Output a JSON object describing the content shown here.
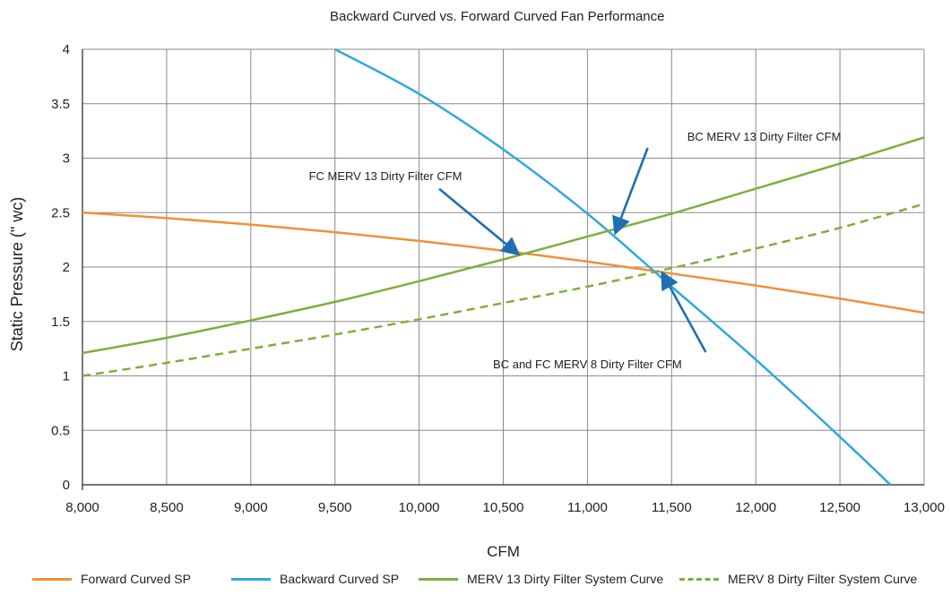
{
  "chart_data": {
    "type": "line",
    "title": "Backward Curved vs. Forward Curved Fan Performance",
    "xlabel": "CFM",
    "ylabel": "Static Pressure (\" wc)",
    "xlim": [
      8000,
      13000
    ],
    "ylim": [
      0,
      4
    ],
    "xticks": [
      8000,
      8500,
      9000,
      9500,
      10000,
      10500,
      11000,
      11500,
      12000,
      12500,
      13000
    ],
    "xtick_labels": [
      "8,000",
      "8,500",
      "9,000",
      "9,500",
      "10,000",
      "10,500",
      "11,000",
      "11,500",
      "12,000",
      "12,500",
      "13,000"
    ],
    "yticks": [
      0,
      0.5,
      1,
      1.5,
      2,
      2.5,
      3,
      3.5,
      4
    ],
    "ytick_labels": [
      "0",
      "0.5",
      "1",
      "1.5",
      "2",
      "2.5",
      "3",
      "3.5",
      "4"
    ],
    "grid": true,
    "legend_position": "bottom",
    "series": [
      {
        "name": "Forward Curved SP",
        "color": "#f0913a",
        "style": "solid",
        "x": [
          8000,
          8500,
          9000,
          9500,
          10000,
          10500,
          11000,
          11500,
          12000,
          12500,
          13000
        ],
        "y": [
          2.5,
          2.45,
          2.39,
          2.32,
          2.24,
          2.15,
          2.05,
          1.94,
          1.83,
          1.71,
          1.58
        ]
      },
      {
        "name": "Backward Curved SP",
        "color": "#2fa8dc",
        "style": "solid",
        "x": [
          9500,
          10000,
          10500,
          11000,
          11500,
          12000,
          12500,
          12800
        ],
        "y": [
          4.0,
          3.59,
          3.08,
          2.49,
          1.82,
          1.15,
          0.44,
          0.0
        ]
      },
      {
        "name": "MERV 13 Dirty Filter System Curve",
        "color": "#7fae3e",
        "style": "solid",
        "x": [
          8000,
          8500,
          9000,
          9500,
          10000,
          10500,
          11000,
          11500,
          12000,
          12500,
          13000
        ],
        "y": [
          1.21,
          1.35,
          1.51,
          1.68,
          1.87,
          2.07,
          2.28,
          2.49,
          2.72,
          2.95,
          3.19
        ]
      },
      {
        "name": "MERV 8 Dirty Filter System Curve",
        "color": "#7fae3e",
        "style": "dashed",
        "x": [
          8000,
          8500,
          9000,
          9500,
          10000,
          10500,
          11000,
          11500,
          12000,
          12500,
          13000
        ],
        "y": [
          1.0,
          1.12,
          1.25,
          1.38,
          1.52,
          1.67,
          1.82,
          1.99,
          2.17,
          2.36,
          2.58
        ]
      }
    ],
    "annotations": [
      {
        "text": "BC MERV 13 Dirty Filter CFM",
        "x": 11170,
        "y": 2.33,
        "text_x": 12050,
        "text_y": 3.16
      },
      {
        "text": "FC MERV 13 Dirty Filter CFM",
        "x": 10580,
        "y": 2.13,
        "text_x": 9800,
        "text_y": 2.8
      },
      {
        "text": "BC and FC MERV 8 Dirty Filter CFM",
        "x": 11450,
        "y": 1.93,
        "text_x": 11000,
        "text_y": 1.07
      }
    ]
  }
}
